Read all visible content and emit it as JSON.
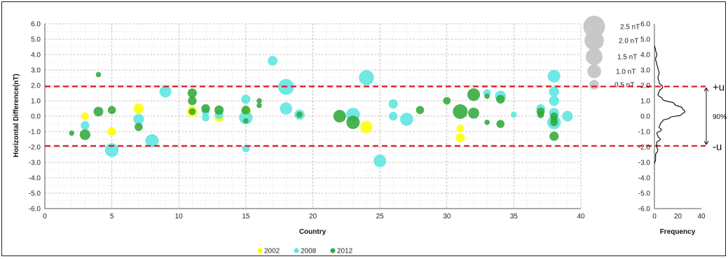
{
  "chart_data": [
    {
      "type": "scatter",
      "xlabel": "Country",
      "ylabel": "Horizontal Difference(nT)",
      "xlim": [
        0,
        40
      ],
      "ylim": [
        -6,
        6
      ],
      "x_ticks": [
        "0",
        "5",
        "10",
        "15",
        "20",
        "25",
        "30",
        "35",
        "40"
      ],
      "y_ticks": [
        "6.0",
        "5.0",
        "4.0",
        "3.0",
        "2.0",
        "1.0",
        "0.0",
        "-1.0",
        "-2.0",
        "-3.0",
        "-4.0",
        "-5.0",
        "-6.0"
      ],
      "grid": true,
      "legend_position": "bottom",
      "bubble_size_legend": [
        {
          "label": "2.5 nT",
          "size": 2.5
        },
        {
          "label": "2.0 nT",
          "size": 2.0
        },
        {
          "label": "1.5 nT",
          "size": 1.5
        },
        {
          "label": "1.0 nT",
          "size": 1.0
        },
        {
          "label": "0.5 nT",
          "size": 0.5
        }
      ],
      "reference_lines": [
        {
          "y": 1.93,
          "label": "+u",
          "color": "#e0101a"
        },
        {
          "y": -1.93,
          "label": "-u",
          "color": "#e0101a"
        }
      ],
      "series": [
        {
          "name": "2002",
          "color": "#ffff00",
          "points": [
            [
              3,
              0.0,
              0.3
            ],
            [
              5,
              -1.0,
              0.4
            ],
            [
              7,
              0.5,
              0.55
            ],
            [
              11,
              0.3,
              0.6
            ],
            [
              13,
              -0.1,
              0.4
            ],
            [
              15,
              0.3,
              0.5
            ],
            [
              24,
              -0.7,
              0.8
            ],
            [
              31,
              -0.8,
              0.3
            ],
            [
              31,
              -1.4,
              0.45
            ],
            [
              38,
              -0.2,
              0.3
            ]
          ]
        },
        {
          "name": "2008",
          "color": "#5ce5e0",
          "points": [
            [
              3,
              -0.6,
              0.4
            ],
            [
              5,
              -2.2,
              1.0
            ],
            [
              7,
              -0.2,
              0.6
            ],
            [
              8,
              -1.6,
              0.95
            ],
            [
              9,
              1.6,
              0.75
            ],
            [
              12,
              0.3,
              0.35
            ],
            [
              12,
              -0.1,
              0.3
            ],
            [
              13,
              0.1,
              0.4
            ],
            [
              15,
              1.1,
              0.45
            ],
            [
              15,
              -0.1,
              0.95
            ],
            [
              15,
              -2.1,
              0.3
            ],
            [
              17,
              3.6,
              0.5
            ],
            [
              18,
              1.9,
              1.35
            ],
            [
              18,
              0.5,
              0.8
            ],
            [
              19,
              0.1,
              0.55
            ],
            [
              23,
              0.1,
              1.0
            ],
            [
              24,
              2.5,
              1.2
            ],
            [
              25,
              -2.9,
              0.85
            ],
            [
              26,
              0.8,
              0.45
            ],
            [
              26,
              0.0,
              0.4
            ],
            [
              27,
              -0.2,
              0.9
            ],
            [
              33,
              1.5,
              0.3
            ],
            [
              34,
              1.3,
              0.65
            ],
            [
              35,
              0.1,
              0.2
            ],
            [
              37,
              0.5,
              0.4
            ],
            [
              38,
              2.6,
              0.85
            ],
            [
              38,
              1.6,
              0.55
            ],
            [
              38,
              1.0,
              0.55
            ],
            [
              38,
              0.2,
              0.55
            ],
            [
              38,
              -0.4,
              1.0
            ],
            [
              39,
              0.0,
              0.6
            ]
          ]
        },
        {
          "name": "2012",
          "color": "#33a83a",
          "points": [
            [
              2,
              -1.1,
              0.15
            ],
            [
              3,
              -1.2,
              0.6
            ],
            [
              4,
              2.7,
              0.15
            ],
            [
              4,
              0.3,
              0.5
            ],
            [
              5,
              0.4,
              0.35
            ],
            [
              7,
              -0.7,
              0.35
            ],
            [
              11,
              1.5,
              0.45
            ],
            [
              11,
              1.0,
              0.4
            ],
            [
              11,
              0.3,
              0.25
            ],
            [
              12,
              0.5,
              0.4
            ],
            [
              13,
              0.4,
              0.45
            ],
            [
              15,
              0.4,
              0.4
            ],
            [
              15,
              -0.3,
              0.15
            ],
            [
              16,
              1.0,
              0.15
            ],
            [
              16,
              0.7,
              0.15
            ],
            [
              19,
              0.1,
              0.2
            ],
            [
              22,
              0.0,
              0.85
            ],
            [
              23,
              -0.4,
              0.95
            ],
            [
              28,
              0.4,
              0.35
            ],
            [
              30,
              1.0,
              0.3
            ],
            [
              31,
              0.3,
              1.15
            ],
            [
              32,
              1.4,
              0.85
            ],
            [
              32,
              0.2,
              0.65
            ],
            [
              33,
              1.3,
              0.15
            ],
            [
              33,
              -0.4,
              0.15
            ],
            [
              34,
              1.1,
              0.4
            ],
            [
              34,
              -0.5,
              0.35
            ],
            [
              37,
              0.3,
              0.35
            ],
            [
              37,
              0.1,
              0.25
            ],
            [
              38,
              0.0,
              0.3
            ],
            [
              38,
              -0.2,
              0.25
            ],
            [
              38,
              -0.4,
              0.3
            ],
            [
              38,
              -1.3,
              0.45
            ]
          ]
        }
      ]
    },
    {
      "type": "line",
      "xlabel": "Frequency",
      "ylabel": "",
      "xlim": [
        0,
        40
      ],
      "ylim": [
        -6,
        6
      ],
      "x_ticks": [
        "0",
        "20",
        "40"
      ],
      "y_ticks": [
        "6.0",
        "5.0",
        "4.0",
        "3.0",
        "2.0",
        "1.0",
        "0.0",
        "-1.0",
        "-2.0",
        "-3.0",
        "-4.0",
        "-5.0",
        "-6.0"
      ],
      "grid": false,
      "annotation_bracket": {
        "from": 1.93,
        "to": -1.93,
        "label": "90%"
      },
      "series": [
        {
          "color": "#000000",
          "points": [
            [
              0,
              4.6
            ],
            [
              1,
              4.3
            ],
            [
              2,
              4.0
            ],
            [
              1,
              3.7
            ],
            [
              2,
              3.4
            ],
            [
              3,
              3.1
            ],
            [
              4,
              2.8
            ],
            [
              3,
              2.5
            ],
            [
              4,
              2.2
            ],
            [
              7,
              1.9
            ],
            [
              4,
              1.6
            ],
            [
              3,
              1.4
            ],
            [
              7,
              1.1
            ],
            [
              17,
              0.8
            ],
            [
              24,
              0.5
            ],
            [
              26,
              0.3
            ],
            [
              23,
              0.1
            ],
            [
              13,
              -0.1
            ],
            [
              7,
              -0.3
            ],
            [
              5,
              -0.5
            ],
            [
              4,
              -0.7
            ],
            [
              6,
              -0.9
            ],
            [
              2,
              -1.1
            ],
            [
              3,
              -1.3
            ],
            [
              5,
              -1.5
            ],
            [
              2,
              -1.7
            ],
            [
              2,
              -2.0
            ],
            [
              3,
              -2.2
            ],
            [
              1,
              -2.5
            ],
            [
              1,
              -2.8
            ],
            [
              0,
              -3.1
            ]
          ]
        }
      ]
    }
  ]
}
